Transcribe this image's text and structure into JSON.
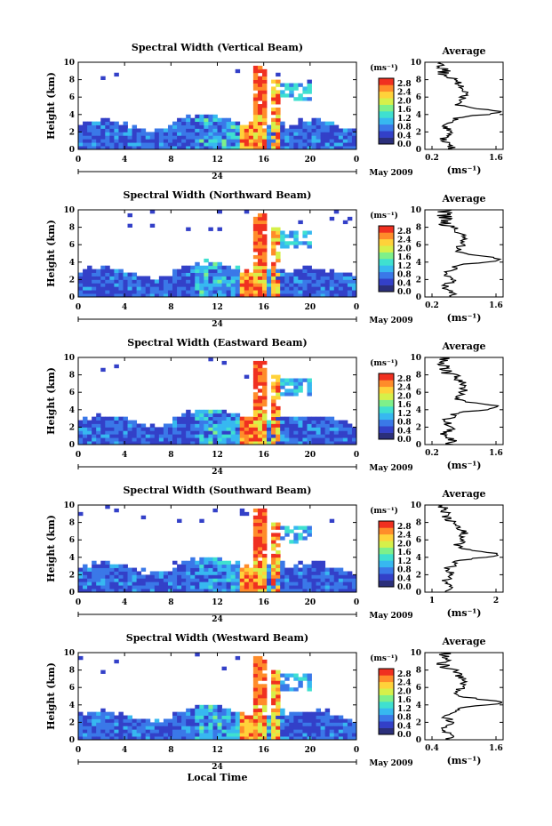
{
  "figure": {
    "bottom_xlabel": "Local Time",
    "colorbar_unit": "(ms⁻¹)",
    "colorbar_ticks": [
      "0.0",
      "0.4",
      "0.8",
      "1.2",
      "1.6",
      "2.0",
      "2.4",
      "2.8"
    ],
    "colormap": [
      "#2b2f7a",
      "#3340c8",
      "#3a78e8",
      "#37b8f0",
      "#3fe0d0",
      "#7ef08a",
      "#d6f04a",
      "#ffd23a",
      "#ff8c2a",
      "#f03020"
    ],
    "date_label": "May 2009"
  },
  "panels": [
    {
      "title": "Spectral Width (Vertical Beam)",
      "profile_title": "Average",
      "profile_xticks": [
        "0.2",
        "1.6"
      ],
      "profile_xlabel": "(ms⁻¹)"
    },
    {
      "title": "Spectral Width (Northward Beam)",
      "profile_title": "Average",
      "profile_xticks": [
        "0.2",
        "1.6"
      ],
      "profile_xlabel": "(ms⁻¹)"
    },
    {
      "title": "Spectral Width (Eastward Beam)",
      "profile_title": "Average",
      "profile_xticks": [
        "0.2",
        "1.6"
      ],
      "profile_xlabel": "(ms⁻¹)"
    },
    {
      "title": "Spectral Width (Southward Beam)",
      "profile_title": "Average",
      "profile_xticks": [
        "1",
        "2"
      ],
      "profile_xlabel": "(ms⁻¹)"
    },
    {
      "title": "Spectral Width (Westward Beam)",
      "profile_title": "Average",
      "profile_xticks": [
        "0.4",
        "1.6"
      ],
      "profile_xlabel": "(ms⁻¹)"
    }
  ],
  "chart_data": [
    {
      "type": "heatmap",
      "title": "Spectral Width (Vertical Beam)",
      "ylabel": "Height (km)",
      "ylim": [
        0,
        10
      ],
      "xlim": [
        0,
        24
      ],
      "xticks": [
        "0",
        "4",
        "8",
        "12",
        "16",
        "20",
        "0"
      ],
      "date_tick": "24",
      "colorbar_range": [
        0,
        2.8
      ]
    },
    {
      "type": "heatmap",
      "title": "Spectral Width (Northward Beam)",
      "ylabel": "Height (km)",
      "ylim": [
        0,
        10
      ],
      "xlim": [
        0,
        24
      ],
      "xticks": [
        "0",
        "4",
        "8",
        "12",
        "16",
        "20",
        "0"
      ],
      "date_tick": "24",
      "colorbar_range": [
        0,
        2.8
      ]
    },
    {
      "type": "heatmap",
      "title": "Spectral Width (Eastward Beam)",
      "ylabel": "Height (km)",
      "ylim": [
        0,
        10
      ],
      "xlim": [
        0,
        24
      ],
      "xticks": [
        "0",
        "4",
        "8",
        "12",
        "16",
        "20",
        "0"
      ],
      "date_tick": "24",
      "colorbar_range": [
        0,
        2.8
      ]
    },
    {
      "type": "heatmap",
      "title": "Spectral Width (Southward Beam)",
      "ylabel": "Height (km)",
      "ylim": [
        0,
        10
      ],
      "xlim": [
        0,
        24
      ],
      "xticks": [
        "0",
        "4",
        "8",
        "12",
        "16",
        "20",
        "0"
      ],
      "date_tick": "24",
      "colorbar_range": [
        0,
        2.8
      ]
    },
    {
      "type": "heatmap",
      "title": "Spectral Width (Westward Beam)",
      "ylabel": "Height (km)",
      "ylim": [
        0,
        10
      ],
      "xlim": [
        0,
        24
      ],
      "xticks": [
        "0",
        "4",
        "8",
        "12",
        "16",
        "20",
        "0"
      ],
      "date_tick": "24",
      "colorbar_range": [
        0,
        2.8
      ]
    }
  ]
}
